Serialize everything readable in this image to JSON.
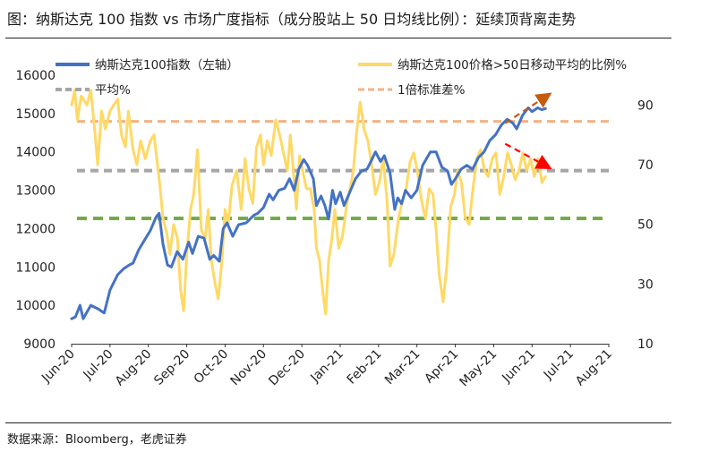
{
  "figure": {
    "title": "图：纳斯达克 100 指数 vs 市场广度指标（成分股站上 50 日均线比例）：延续顶背离走势",
    "source": "数据来源：Bloomberg，老虎证券"
  },
  "colors": {
    "index_line": "#4472C4",
    "breadth_line": "#FFD966",
    "average_line": "#A6A6A6",
    "std_line": "#F4B183",
    "green_line": "#70AD47",
    "arrow_up": "#C55A11",
    "arrow_down": "#FF0000"
  },
  "chart_data": {
    "type": "line",
    "x": [
      "Jun-20",
      "Jul-20",
      "Aug-20",
      "Sep-20",
      "Oct-20",
      "Nov-20",
      "Dec-20",
      "Jan-21",
      "Feb-21",
      "Mar-21",
      "Apr-21",
      "May-21",
      "Jun-21",
      "Jul-21",
      "Aug-21"
    ],
    "y_left": {
      "ylim": [
        9000,
        16000
      ],
      "ticks": [
        9000,
        10000,
        11000,
        12000,
        13000,
        14000,
        15000,
        16000
      ]
    },
    "y_right": {
      "ylim": [
        10,
        100
      ],
      "ticks": [
        10,
        30,
        50,
        70,
        90
      ]
    },
    "legend": [
      {
        "key": "index",
        "label": "纳斯达克100指数（左轴）"
      },
      {
        "key": "breadth",
        "label": "纳斯达克100价格>50日移动平均的比例%"
      },
      {
        "key": "average",
        "label": "平均%"
      },
      {
        "key": "std",
        "label": "1倍标准差%"
      }
    ],
    "series": [
      {
        "name": "纳斯达克100指数（左轴）",
        "axis": "left",
        "key": "index",
        "points": [
          [
            0,
            9650
          ],
          [
            0.1,
            9700
          ],
          [
            0.22,
            10000
          ],
          [
            0.3,
            9650
          ],
          [
            0.5,
            10000
          ],
          [
            0.7,
            9900
          ],
          [
            0.85,
            9800
          ],
          [
            1.0,
            10400
          ],
          [
            1.2,
            10800
          ],
          [
            1.35,
            10950
          ],
          [
            1.5,
            11050
          ],
          [
            1.6,
            11100
          ],
          [
            1.75,
            11450
          ],
          [
            1.9,
            11700
          ],
          [
            2.05,
            11950
          ],
          [
            2.2,
            12300
          ],
          [
            2.28,
            12400
          ],
          [
            2.38,
            11600
          ],
          [
            2.5,
            11050
          ],
          [
            2.6,
            11000
          ],
          [
            2.75,
            11400
          ],
          [
            2.9,
            11200
          ],
          [
            3.05,
            11650
          ],
          [
            3.15,
            11350
          ],
          [
            3.3,
            11800
          ],
          [
            3.45,
            11750
          ],
          [
            3.6,
            11200
          ],
          [
            3.7,
            11300
          ],
          [
            3.85,
            11150
          ],
          [
            3.95,
            12000
          ],
          [
            4.05,
            12150
          ],
          [
            4.2,
            11800
          ],
          [
            4.35,
            12100
          ],
          [
            4.55,
            12150
          ],
          [
            4.75,
            12350
          ],
          [
            4.85,
            12400
          ],
          [
            5.0,
            12550
          ],
          [
            5.15,
            12900
          ],
          [
            5.25,
            12750
          ],
          [
            5.4,
            13000
          ],
          [
            5.55,
            13050
          ],
          [
            5.68,
            13300
          ],
          [
            5.8,
            13000
          ],
          [
            5.92,
            13550
          ],
          [
            6.05,
            13800
          ],
          [
            6.15,
            13650
          ],
          [
            6.3,
            13300
          ],
          [
            6.38,
            12600
          ],
          [
            6.5,
            12850
          ],
          [
            6.6,
            12600
          ],
          [
            6.7,
            12250
          ],
          [
            6.8,
            13000
          ],
          [
            6.88,
            12650
          ],
          [
            7.0,
            12950
          ],
          [
            7.1,
            12600
          ],
          [
            7.25,
            12950
          ],
          [
            7.4,
            13300
          ],
          [
            7.55,
            13500
          ],
          [
            7.7,
            13550
          ],
          [
            7.8,
            13750
          ],
          [
            7.92,
            14000
          ],
          [
            8.05,
            13750
          ],
          [
            8.15,
            13900
          ],
          [
            8.3,
            13450
          ],
          [
            8.42,
            12500
          ],
          [
            8.5,
            12800
          ],
          [
            8.6,
            12650
          ],
          [
            8.7,
            13000
          ],
          [
            8.85,
            12800
          ],
          [
            9.0,
            13000
          ],
          [
            9.15,
            13650
          ],
          [
            9.35,
            14000
          ],
          [
            9.5,
            14000
          ],
          [
            9.65,
            13600
          ],
          [
            9.8,
            13500
          ],
          [
            9.9,
            13150
          ],
          [
            10.0,
            13300
          ],
          [
            10.15,
            13550
          ],
          [
            10.3,
            13650
          ],
          [
            10.45,
            13550
          ],
          [
            10.6,
            13850
          ],
          [
            10.75,
            14000
          ],
          [
            10.9,
            14300
          ],
          [
            11.05,
            14450
          ],
          [
            11.2,
            14700
          ],
          [
            11.35,
            14850
          ],
          [
            11.5,
            14750
          ],
          [
            11.6,
            14600
          ],
          [
            11.75,
            14950
          ],
          [
            11.9,
            15150
          ],
          [
            12.0,
            15050
          ],
          [
            12.15,
            15150
          ],
          [
            12.25,
            15100
          ],
          [
            12.35,
            15130
          ]
        ]
      },
      {
        "name": "纳斯达克100价格>50日移动平均的比例%",
        "axis": "right",
        "key": "breadth",
        "points": [
          [
            0,
            90
          ],
          [
            0.08,
            95
          ],
          [
            0.15,
            85
          ],
          [
            0.25,
            93
          ],
          [
            0.4,
            90
          ],
          [
            0.5,
            95
          ],
          [
            0.6,
            82
          ],
          [
            0.68,
            70
          ],
          [
            0.78,
            88
          ],
          [
            0.88,
            82
          ],
          [
            1.0,
            88
          ],
          [
            1.1,
            90
          ],
          [
            1.2,
            92
          ],
          [
            1.3,
            80
          ],
          [
            1.4,
            76
          ],
          [
            1.48,
            88
          ],
          [
            1.6,
            75
          ],
          [
            1.7,
            70
          ],
          [
            1.8,
            78
          ],
          [
            1.92,
            72
          ],
          [
            2.05,
            78
          ],
          [
            2.15,
            80
          ],
          [
            2.22,
            72
          ],
          [
            2.3,
            63
          ],
          [
            2.38,
            52
          ],
          [
            2.48,
            47
          ],
          [
            2.56,
            40
          ],
          [
            2.66,
            50
          ],
          [
            2.76,
            45
          ],
          [
            2.84,
            28
          ],
          [
            2.92,
            21
          ],
          [
            3.0,
            40
          ],
          [
            3.1,
            55
          ],
          [
            3.18,
            60
          ],
          [
            3.28,
            75
          ],
          [
            3.38,
            48
          ],
          [
            3.48,
            45
          ],
          [
            3.56,
            55
          ],
          [
            3.64,
            38
          ],
          [
            3.74,
            30
          ],
          [
            3.82,
            25
          ],
          [
            3.92,
            38
          ],
          [
            4.0,
            55
          ],
          [
            4.08,
            50
          ],
          [
            4.18,
            63
          ],
          [
            4.3,
            68
          ],
          [
            4.42,
            55
          ],
          [
            4.52,
            72
          ],
          [
            4.62,
            62
          ],
          [
            4.72,
            57
          ],
          [
            4.82,
            76
          ],
          [
            4.92,
            80
          ],
          [
            5.0,
            70
          ],
          [
            5.1,
            78
          ],
          [
            5.2,
            73
          ],
          [
            5.32,
            85
          ],
          [
            5.42,
            80
          ],
          [
            5.52,
            74
          ],
          [
            5.62,
            68
          ],
          [
            5.7,
            80
          ],
          [
            5.78,
            68
          ],
          [
            5.86,
            55
          ],
          [
            5.94,
            73
          ],
          [
            6.02,
            68
          ],
          [
            6.12,
            62
          ],
          [
            6.22,
            62
          ],
          [
            6.32,
            55
          ],
          [
            6.38,
            42
          ],
          [
            6.46,
            38
          ],
          [
            6.54,
            28
          ],
          [
            6.62,
            20
          ],
          [
            6.7,
            38
          ],
          [
            6.78,
            45
          ],
          [
            6.86,
            55
          ],
          [
            6.96,
            42
          ],
          [
            7.06,
            46
          ],
          [
            7.16,
            56
          ],
          [
            7.26,
            62
          ],
          [
            7.34,
            68
          ],
          [
            7.42,
            80
          ],
          [
            7.52,
            91
          ],
          [
            7.62,
            82
          ],
          [
            7.72,
            78
          ],
          [
            7.82,
            70
          ],
          [
            7.92,
            60
          ],
          [
            8.02,
            64
          ],
          [
            8.12,
            72
          ],
          [
            8.22,
            58
          ],
          [
            8.3,
            36
          ],
          [
            8.4,
            40
          ],
          [
            8.52,
            52
          ],
          [
            8.62,
            58
          ],
          [
            8.72,
            62
          ],
          [
            8.82,
            71
          ],
          [
            8.92,
            74
          ],
          [
            9.02,
            67
          ],
          [
            9.12,
            58
          ],
          [
            9.22,
            52
          ],
          [
            9.32,
            62
          ],
          [
            9.42,
            60
          ],
          [
            9.5,
            48
          ],
          [
            9.58,
            33
          ],
          [
            9.68,
            24
          ],
          [
            9.78,
            36
          ],
          [
            9.88,
            56
          ],
          [
            9.98,
            60
          ],
          [
            10.06,
            68
          ],
          [
            10.16,
            64
          ],
          [
            10.26,
            52
          ],
          [
            10.36,
            50
          ],
          [
            10.46,
            62
          ],
          [
            10.56,
            72
          ],
          [
            10.66,
            75
          ],
          [
            10.76,
            68
          ],
          [
            10.86,
            66
          ],
          [
            10.96,
            72
          ],
          [
            11.06,
            74
          ],
          [
            11.16,
            60
          ],
          [
            11.26,
            66
          ],
          [
            11.36,
            74
          ],
          [
            11.46,
            70
          ],
          [
            11.56,
            65
          ],
          [
            11.66,
            68
          ],
          [
            11.76,
            74
          ],
          [
            11.86,
            68
          ],
          [
            11.96,
            72
          ],
          [
            12.06,
            66
          ],
          [
            12.16,
            72
          ],
          [
            12.26,
            64
          ],
          [
            12.35,
            66
          ]
        ]
      }
    ],
    "reference_lines": [
      {
        "key": "average",
        "axis": "right",
        "value": 68
      },
      {
        "key": "std",
        "axis": "right",
        "value": 84.5
      },
      {
        "key": "green",
        "axis": "right",
        "value": 52
      }
    ],
    "arrows": [
      {
        "key": "up",
        "axis": "left",
        "from": [
          11.3,
          14750
        ],
        "to": [
          12.45,
          15500
        ]
      },
      {
        "key": "down",
        "axis": "right",
        "from": [
          11.3,
          77
        ],
        "to": [
          12.45,
          69
        ]
      }
    ]
  }
}
